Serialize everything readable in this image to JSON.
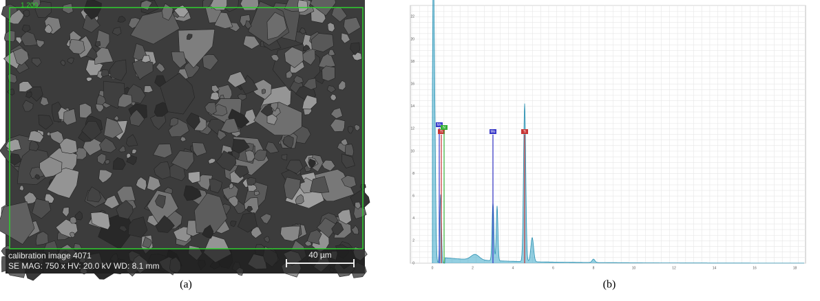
{
  "panel_a": {
    "overlay_label": "1.200",
    "info_line_1": "calibration image 4071",
    "info_line_2": "SE  MAG: 750 x  HV: 20.0 kV  WD: 8.1 mm",
    "scale_bar": "40 µm",
    "caption": "(a)"
  },
  "panel_b": {
    "y_ticks": [
      "0",
      "2",
      "4",
      "6",
      "8",
      "10",
      "12",
      "14",
      "16",
      "18",
      "20",
      "22"
    ],
    "x_ticks": [
      "0",
      "2",
      "4",
      "6",
      "8",
      "10",
      "12",
      "14",
      "16",
      "18"
    ],
    "peak_labels": [
      "Mo",
      "Ti",
      "N",
      "Mo",
      "Ti"
    ],
    "caption": "(b)"
  }
}
